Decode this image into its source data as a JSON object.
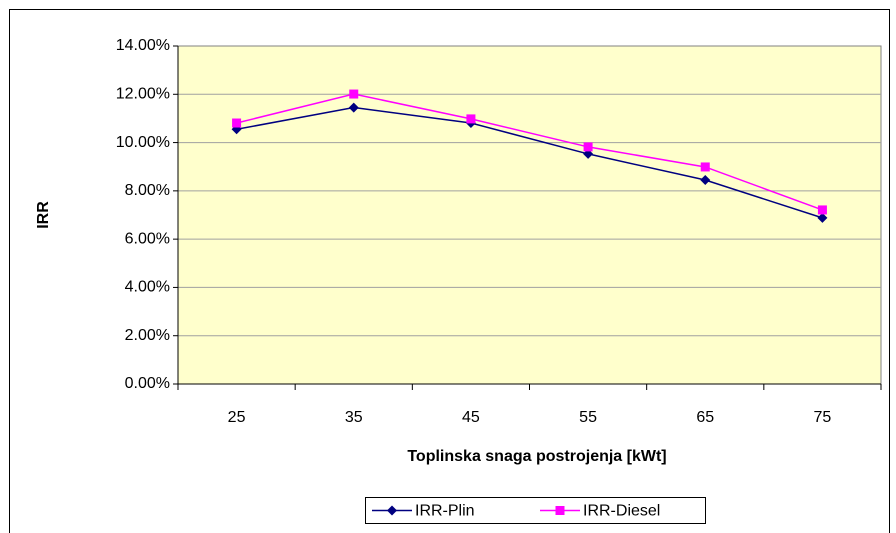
{
  "chart_data": {
    "type": "line",
    "x_label": "Toplinska snaga postrojenja [kWt]",
    "y_label": "IRR",
    "categories": [
      "25",
      "35",
      "45",
      "55",
      "65",
      "75"
    ],
    "series": [
      {
        "name": "IRR-Plin",
        "color": "#000080",
        "marker": "diamond",
        "values": [
          10.55,
          11.45,
          10.81,
          9.53,
          8.45,
          6.88
        ]
      },
      {
        "name": "IRR-Diesel",
        "color": "#ff00ff",
        "marker": "square",
        "values": [
          10.81,
          12.01,
          10.98,
          9.82,
          8.99,
          7.21
        ]
      }
    ],
    "ylim": [
      0,
      14
    ],
    "yticks": [
      {
        "value": 0,
        "label": "0.00%"
      },
      {
        "value": 2,
        "label": "2.00%"
      },
      {
        "value": 4,
        "label": "4.00%"
      },
      {
        "value": 6,
        "label": "6.00%"
      },
      {
        "value": 8,
        "label": "8.00%"
      },
      {
        "value": 10,
        "label": "10.00%"
      },
      {
        "value": 12,
        "label": "12.00%"
      },
      {
        "value": 14,
        "label": "14.00%"
      }
    ],
    "grid": true,
    "legend": "bottom"
  }
}
